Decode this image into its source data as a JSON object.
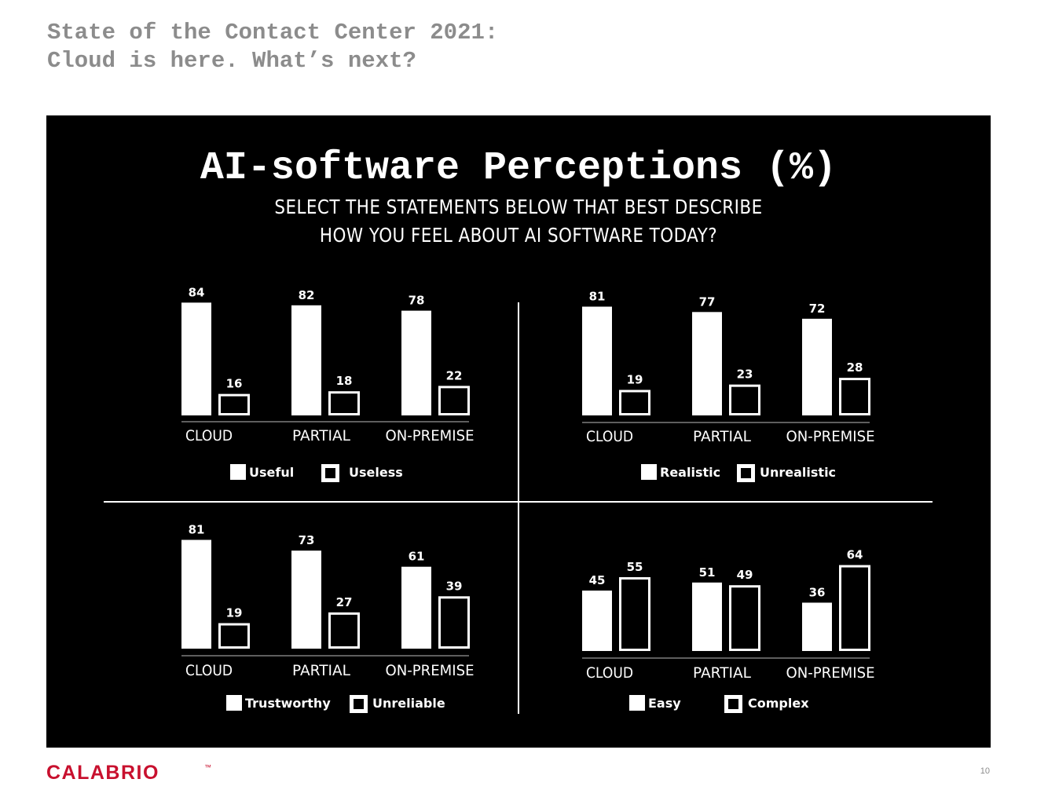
{
  "header": {
    "line1": "State of the Contact Center 2021:",
    "line2": "Cloud is here. What’s next?"
  },
  "colors": {
    "background": "#000000",
    "bar_fill": "#ffffff",
    "header_text": "#8c8c8c",
    "brand": "#c8102e"
  },
  "chart_data": [
    {
      "type": "bar",
      "title": "AI-software Perceptions (%)",
      "subtitle_line1": "SELECT THE STATEMENTS BELOW THAT BEST DESCRIBE",
      "subtitle_line2": "HOW YOU FEEL ABOUT AI SOFTWARE TODAY?",
      "categories": [
        "CLOUD",
        "PARTIAL",
        "ON-PREMISE"
      ],
      "series": [
        {
          "name": "Useful",
          "style": "filled",
          "values": [
            84,
            82,
            78
          ]
        },
        {
          "name": "Useless",
          "style": "outline",
          "values": [
            16,
            18,
            22
          ]
        }
      ],
      "ylim": [
        0,
        100
      ]
    },
    {
      "type": "bar",
      "categories": [
        "CLOUD",
        "PARTIAL",
        "ON-PREMISE"
      ],
      "series": [
        {
          "name": "Realistic",
          "style": "filled",
          "values": [
            81,
            77,
            72
          ]
        },
        {
          "name": "Unrealistic",
          "style": "outline",
          "values": [
            19,
            23,
            28
          ]
        }
      ],
      "ylim": [
        0,
        100
      ]
    },
    {
      "type": "bar",
      "categories": [
        "CLOUD",
        "PARTIAL",
        "ON-PREMISE"
      ],
      "series": [
        {
          "name": "Trustworthy",
          "style": "filled",
          "values": [
            81,
            73,
            61
          ]
        },
        {
          "name": "Unreliable",
          "style": "outline",
          "values": [
            19,
            27,
            39
          ]
        }
      ],
      "ylim": [
        0,
        100
      ]
    },
    {
      "type": "bar",
      "categories": [
        "CLOUD",
        "PARTIAL",
        "ON-PREMISE"
      ],
      "series": [
        {
          "name": "Easy",
          "style": "filled",
          "values": [
            45,
            51,
            36
          ]
        },
        {
          "name": "Complex",
          "style": "outline",
          "values": [
            55,
            49,
            64
          ]
        }
      ],
      "ylim": [
        0,
        100
      ]
    }
  ],
  "footer": {
    "logo_text": "CALABRIO",
    "trademark": "™",
    "page_number": "10"
  }
}
